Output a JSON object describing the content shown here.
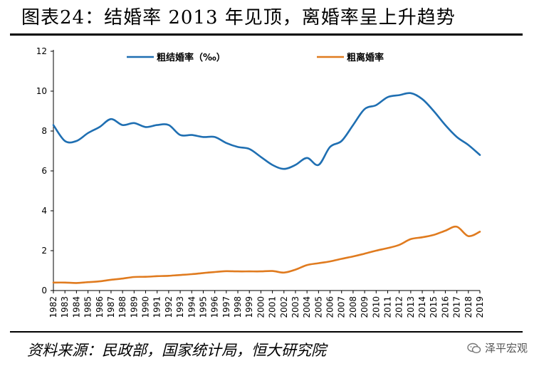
{
  "header": {
    "title": "图表24：结婚率 2013 年见顶，离婚率呈上升趋势"
  },
  "footer": {
    "source": "资料来源：民政部，国家统计局，恒大研究院",
    "watermark": "泽平宏观"
  },
  "colors": {
    "marriage": "#1F6FB2",
    "divorce": "#E07B1F"
  },
  "chart_data": {
    "type": "line",
    "title": "",
    "xlabel": "",
    "ylabel": "",
    "ylim": [
      0,
      12
    ],
    "yticks": [
      0,
      2,
      4,
      6,
      8,
      10,
      12
    ],
    "grid": false,
    "legend_position": "top",
    "x": [
      "1982",
      "1983",
      "1984",
      "1985",
      "1986",
      "1987",
      "1988",
      "1989",
      "1990",
      "1991",
      "1992",
      "1993",
      "1994",
      "1995",
      "1996",
      "1997",
      "1998",
      "1999",
      "2000",
      "2001",
      "2002",
      "2003",
      "2004",
      "2005",
      "2006",
      "2007",
      "2008",
      "2009",
      "2010",
      "2011",
      "2012",
      "2013",
      "2014",
      "2015",
      "2016",
      "2017",
      "2018",
      "2019"
    ],
    "series": [
      {
        "name": "粗结婚率（‰）",
        "color": "#1F6FB2",
        "values": [
          8.3,
          7.5,
          7.5,
          7.9,
          8.2,
          8.6,
          8.3,
          8.4,
          8.2,
          8.3,
          8.3,
          7.8,
          7.8,
          7.7,
          7.7,
          7.4,
          7.2,
          7.1,
          6.7,
          6.3,
          6.1,
          6.3,
          6.65,
          6.3,
          7.2,
          7.5,
          8.3,
          9.1,
          9.3,
          9.7,
          9.8,
          9.9,
          9.6,
          9.0,
          8.3,
          7.7,
          7.3,
          6.8
        ]
      },
      {
        "name": "粗离婚率",
        "color": "#E07B1F",
        "values": [
          0.4,
          0.4,
          0.38,
          0.42,
          0.46,
          0.54,
          0.6,
          0.68,
          0.69,
          0.72,
          0.74,
          0.78,
          0.82,
          0.88,
          0.93,
          0.97,
          0.96,
          0.96,
          0.96,
          0.98,
          0.9,
          1.05,
          1.28,
          1.37,
          1.46,
          1.59,
          1.71,
          1.85,
          2.0,
          2.13,
          2.29,
          2.58,
          2.67,
          2.79,
          3.0,
          3.2,
          2.73,
          2.95
        ]
      }
    ]
  }
}
